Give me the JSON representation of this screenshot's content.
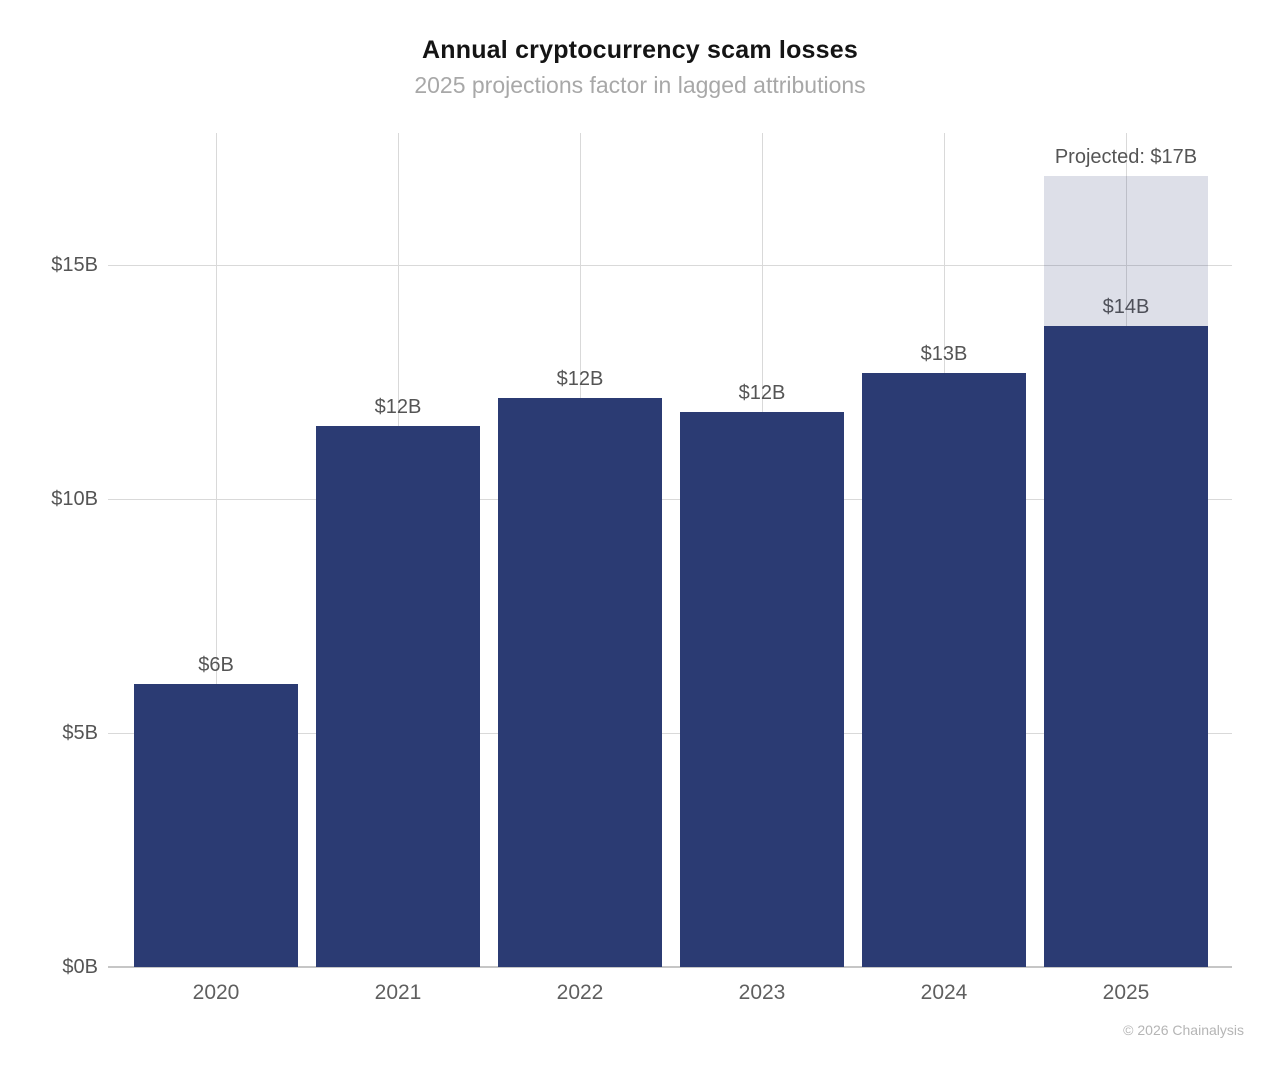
{
  "header": {
    "title": "Annual cryptocurrency scam losses",
    "subtitle": "2025 projections factor in lagged attributions"
  },
  "footer": {
    "credit": "© 2026 Chainalysis"
  },
  "colors": {
    "bar": "#2b3b73",
    "projected_fill": "rgba(43,59,115,0.16)",
    "gridline": "#d9d9d9",
    "axis_line": "#c6c6c6",
    "value_label": "#555555",
    "year_label": "#5f5f5f",
    "title": "#141414",
    "subtitle": "#a8a8a8",
    "credit": "#b5b5b5"
  },
  "chart_data": {
    "type": "bar",
    "title": "Annual cryptocurrency scam losses",
    "subtitle": "2025 projections factor in lagged attributions",
    "categories": [
      "2020",
      "2021",
      "2022",
      "2023",
      "2024",
      "2025"
    ],
    "values": [
      6.05,
      11.55,
      12.15,
      11.85,
      12.7,
      13.7
    ],
    "value_labels": [
      "$6B",
      "$12B",
      "$12B",
      "$12B",
      "$13B",
      "$14B"
    ],
    "projected": {
      "year": "2025",
      "total_value": 16.9,
      "label": "Projected: $17B"
    },
    "y_ticks": [
      {
        "value": 0,
        "label": "$0B"
      },
      {
        "value": 5,
        "label": "$5B"
      },
      {
        "value": 10,
        "label": "$10B"
      },
      {
        "value": 15,
        "label": "$15B"
      }
    ],
    "ylim": [
      0,
      17.8
    ],
    "xlabel": "",
    "ylabel": "",
    "grid": true,
    "legend": "none",
    "credit": "© 2026 Chainalysis"
  }
}
